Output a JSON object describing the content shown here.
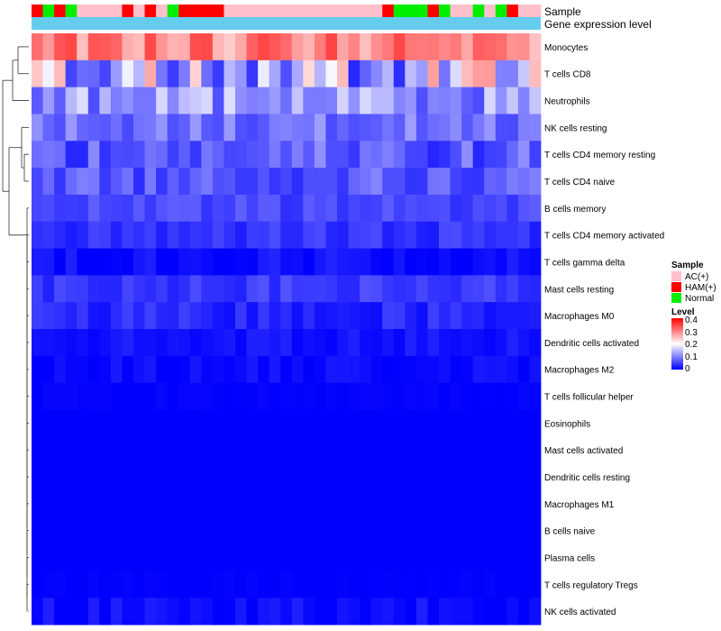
{
  "chart_data": {
    "type": "heatmap",
    "title": "",
    "annotations": [
      {
        "name": "Sample",
        "type": "categorical"
      },
      {
        "name": "Gene expression level",
        "type": "constant",
        "color": "#66ccee"
      }
    ],
    "sample_groups": [
      "HAM(+)",
      "Normal",
      "HAM(+)",
      "Normal",
      "AC(+)",
      "AC(+)",
      "AC(+)",
      "AC(+)",
      "HAM(+)",
      "AC(+)",
      "HAM(+)",
      "AC(+)",
      "Normal",
      "HAM(+)",
      "HAM(+)",
      "HAM(+)",
      "HAM(+)",
      "AC(+)",
      "AC(+)",
      "AC(+)",
      "AC(+)",
      "AC(+)",
      "AC(+)",
      "AC(+)",
      "AC(+)",
      "AC(+)",
      "AC(+)",
      "AC(+)",
      "AC(+)",
      "AC(+)",
      "AC(+)",
      "HAM(+)",
      "Normal",
      "Normal",
      "Normal",
      "HAM(+)",
      "Normal",
      "AC(+)",
      "AC(+)",
      "Normal",
      "AC(+)",
      "Normal",
      "HAM(+)",
      "AC(+)",
      "AC(+)"
    ],
    "rows": [
      "Monocytes",
      "T cells CD8",
      "Neutrophils",
      "NK cells resting",
      "T cells CD4 memory resting",
      "T cells CD4 naive",
      "B cells memory",
      "T cells CD4 memory activated",
      "T cells gamma delta",
      "Mast cells resting",
      "Macrophages M0",
      "Dendritic cells activated",
      "Macrophages M2",
      "T cells follicular helper",
      "Eosinophils",
      "Mast cells activated",
      "Dendritic cells resting",
      "Macrophages M1",
      "B cells naive",
      "Plasma cells",
      "T cells regulatory  Tregs",
      "NK cells activated"
    ],
    "row_base": [
      0.3,
      0.16,
      0.12,
      0.09,
      0.07,
      0.07,
      0.055,
      0.04,
      0.01,
      0.045,
      0.03,
      0.015,
      0.008,
      0.002,
      0,
      0,
      0,
      0,
      0,
      0,
      0,
      0.01
    ],
    "row_amp": [
      0.06,
      0.13,
      0.06,
      0.035,
      0.045,
      0.035,
      0.02,
      0.02,
      0.02,
      0.02,
      0.02,
      0.012,
      0.012,
      0.004,
      0,
      0,
      0,
      0,
      0,
      0,
      0.004,
      0.02
    ],
    "legend": {
      "sample_title": "Sample",
      "sample_entries": [
        {
          "label": "AC(+)",
          "color": "#ffc0cb"
        },
        {
          "label": "HAM(+)",
          "color": "#ff0000"
        },
        {
          "label": "Normal",
          "color": "#00ee00"
        }
      ],
      "level_title": "Level",
      "level_ticks": [
        "0.4",
        "0.3",
        "0.2",
        "0.1",
        "0"
      ],
      "level_range": [
        0,
        0.4
      ]
    },
    "colors": {
      "low": "#0000ff",
      "mid": "#ffffff",
      "high": "#ff0000"
    }
  }
}
